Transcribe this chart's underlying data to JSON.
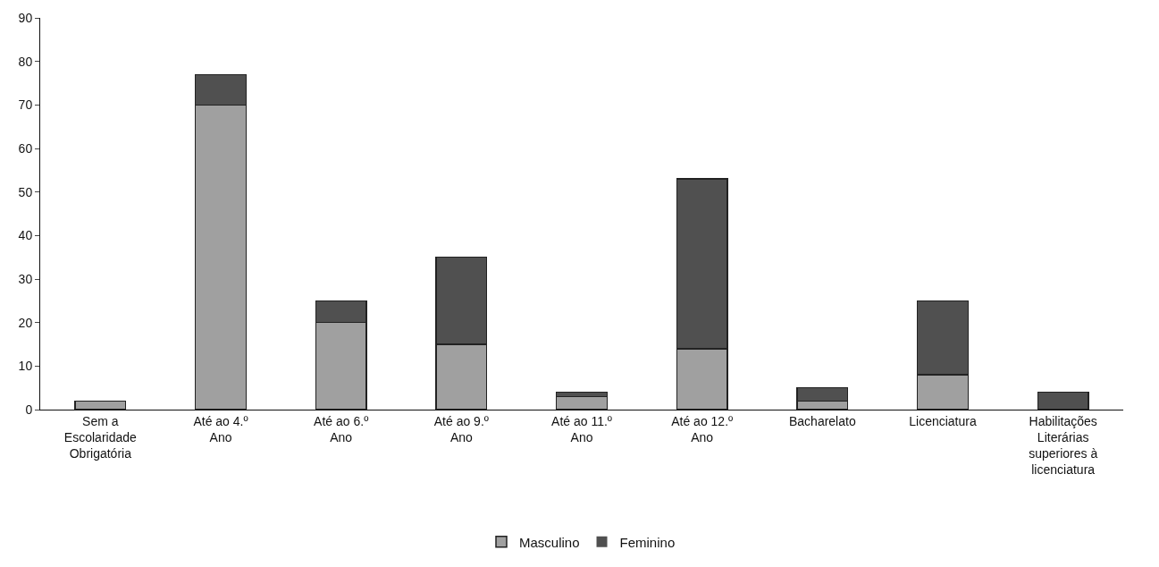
{
  "chart_data": {
    "type": "bar",
    "stacked": true,
    "categories": [
      "Sem a Escolaridade Obrigatória",
      "Até ao 4.º Ano",
      "Até ao 6.º Ano",
      "Até ao 9.º Ano",
      "Até ao 11.º Ano",
      "Até ao 12.º Ano",
      "Bacharelato",
      "Licenciatura",
      "Habilitações Literárias superiores à licenciatura"
    ],
    "series": [
      {
        "name": "Masculino",
        "color": "#a0a0a0",
        "values": [
          2,
          70,
          20,
          15,
          3,
          14,
          2,
          8,
          0
        ]
      },
      {
        "name": "Feminino",
        "color": "#505050",
        "values": [
          0,
          7,
          5,
          20,
          1,
          39,
          3,
          17,
          4
        ]
      }
    ],
    "ylim": [
      0,
      90
    ],
    "yticks": [
      0,
      10,
      20,
      30,
      40,
      50,
      60,
      70,
      80,
      90
    ],
    "legend": "bottom"
  }
}
